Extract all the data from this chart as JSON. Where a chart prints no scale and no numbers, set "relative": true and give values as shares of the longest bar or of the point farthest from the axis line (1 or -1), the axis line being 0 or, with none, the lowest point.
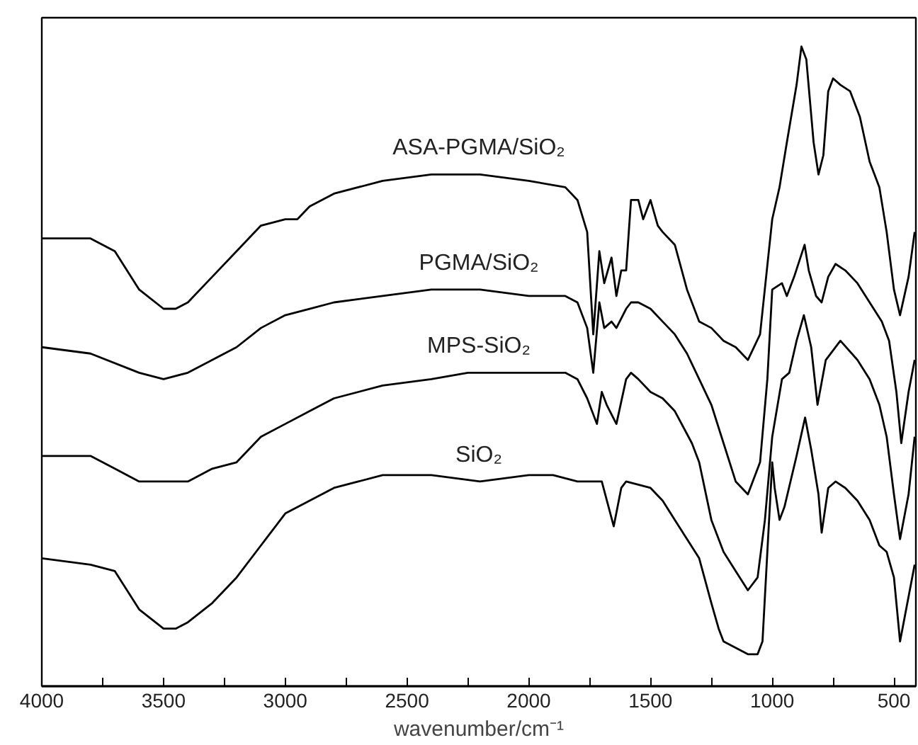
{
  "chart_data": {
    "type": "line",
    "relative": true,
    "xlabel": "wavenumber/cm⁻¹",
    "xlim": [
      4000,
      410
    ],
    "xticks": [
      4000,
      {
        "value": 3750,
        "label": null
      },
      3500,
      {
        "value": 3250,
        "label": null
      },
      3000,
      {
        "value": 2750,
        "label": null
      },
      2500,
      {
        "value": 2250,
        "label": null
      },
      2000,
      {
        "value": 1750,
        "label": null
      },
      1500,
      {
        "value": 1250,
        "label": null
      },
      1000,
      {
        "value": 750,
        "label": null
      },
      500
    ],
    "tick_labels": "x",
    "series": [
      {
        "name": "ASA-PGMA/SiO₂",
        "color": "#000000",
        "x": [
          4000,
          3800,
          3700,
          3600,
          3500,
          3450,
          3400,
          3300,
          3200,
          3100,
          3000,
          2950,
          2900,
          2800,
          2600,
          2400,
          2200,
          2000,
          1850,
          1800,
          1760,
          1735,
          1710,
          1690,
          1660,
          1640,
          1620,
          1600,
          1580,
          1550,
          1530,
          1500,
          1470,
          1450,
          1400,
          1350,
          1300,
          1250,
          1200,
          1150,
          1100,
          1050,
          1000,
          970,
          940,
          900,
          880,
          860,
          830,
          810,
          790,
          770,
          750,
          720,
          680,
          640,
          600,
          560,
          530,
          500,
          475,
          440,
          415
        ],
        "values": [
          0.7,
          0.7,
          0.68,
          0.62,
          0.59,
          0.59,
          0.6,
          0.64,
          0.68,
          0.72,
          0.73,
          0.73,
          0.75,
          0.77,
          0.79,
          0.8,
          0.8,
          0.79,
          0.78,
          0.76,
          0.71,
          0.55,
          0.68,
          0.63,
          0.67,
          0.61,
          0.65,
          0.65,
          0.76,
          0.76,
          0.73,
          0.76,
          0.72,
          0.71,
          0.69,
          0.62,
          0.57,
          0.56,
          0.54,
          0.53,
          0.51,
          0.55,
          0.73,
          0.78,
          0.85,
          0.94,
          1.0,
          0.98,
          0.85,
          0.8,
          0.83,
          0.93,
          0.95,
          0.94,
          0.93,
          0.89,
          0.82,
          0.78,
          0.71,
          0.62,
          0.58,
          0.64,
          0.71
        ]
      },
      {
        "name": "PGMA/SiO₂",
        "color": "#000000",
        "x": [
          4000,
          3800,
          3600,
          3500,
          3400,
          3300,
          3200,
          3100,
          3000,
          2900,
          2800,
          2600,
          2400,
          2200,
          2000,
          1850,
          1800,
          1760,
          1735,
          1710,
          1690,
          1660,
          1640,
          1600,
          1580,
          1550,
          1500,
          1450,
          1400,
          1350,
          1300,
          1250,
          1200,
          1150,
          1100,
          1050,
          1020,
          1000,
          960,
          940,
          910,
          867,
          850,
          820,
          797,
          770,
          740,
          700,
          650,
          600,
          550,
          520,
          490,
          470,
          440,
          415
        ],
        "values": [
          0.53,
          0.52,
          0.49,
          0.48,
          0.49,
          0.51,
          0.53,
          0.56,
          0.58,
          0.59,
          0.6,
          0.61,
          0.62,
          0.62,
          0.61,
          0.61,
          0.6,
          0.56,
          0.49,
          0.6,
          0.56,
          0.57,
          0.56,
          0.59,
          0.6,
          0.6,
          0.59,
          0.57,
          0.55,
          0.52,
          0.48,
          0.44,
          0.38,
          0.32,
          0.3,
          0.35,
          0.48,
          0.62,
          0.63,
          0.61,
          0.64,
          0.69,
          0.65,
          0.61,
          0.6,
          0.64,
          0.66,
          0.65,
          0.63,
          0.6,
          0.57,
          0.54,
          0.46,
          0.38,
          0.46,
          0.51
        ]
      },
      {
        "name": "MPS-SiO₂",
        "color": "#000000",
        "x": [
          4000,
          3800,
          3700,
          3600,
          3500,
          3400,
          3300,
          3200,
          3100,
          3000,
          2900,
          2800,
          2600,
          2400,
          2250,
          2000,
          1850,
          1800,
          1760,
          1720,
          1700,
          1680,
          1640,
          1600,
          1580,
          1550,
          1500,
          1450,
          1400,
          1330,
          1300,
          1250,
          1200,
          1150,
          1100,
          1060,
          1030,
          1000,
          960,
          930,
          900,
          870,
          840,
          814,
          780,
          720,
          650,
          600,
          560,
          530,
          500,
          475,
          440,
          415
        ],
        "values": [
          0.36,
          0.36,
          0.34,
          0.32,
          0.32,
          0.32,
          0.34,
          0.35,
          0.39,
          0.41,
          0.43,
          0.45,
          0.47,
          0.48,
          0.49,
          0.49,
          0.49,
          0.48,
          0.45,
          0.41,
          0.46,
          0.44,
          0.41,
          0.48,
          0.49,
          0.48,
          0.46,
          0.45,
          0.43,
          0.38,
          0.35,
          0.26,
          0.21,
          0.18,
          0.15,
          0.17,
          0.26,
          0.39,
          0.48,
          0.49,
          0.54,
          0.58,
          0.53,
          0.44,
          0.51,
          0.54,
          0.51,
          0.48,
          0.44,
          0.39,
          0.3,
          0.23,
          0.3,
          0.39
        ]
      },
      {
        "name": "SiO₂",
        "color": "#000000",
        "x": [
          4000,
          3800,
          3700,
          3600,
          3500,
          3450,
          3400,
          3300,
          3200,
          3100,
          3000,
          2900,
          2800,
          2700,
          2600,
          2400,
          2200,
          2000,
          1900,
          1800,
          1700,
          1651,
          1620,
          1600,
          1500,
          1450,
          1400,
          1350,
          1300,
          1250,
          1220,
          1200,
          1150,
          1100,
          1060,
          1040,
          1020,
          1000,
          990,
          970,
          950,
          900,
          865,
          840,
          810,
          797,
          770,
          740,
          700,
          650,
          600,
          560,
          530,
          500,
          475,
          450,
          415
        ],
        "values": [
          0.2,
          0.19,
          0.18,
          0.12,
          0.09,
          0.09,
          0.1,
          0.13,
          0.17,
          0.22,
          0.27,
          0.29,
          0.31,
          0.32,
          0.33,
          0.33,
          0.32,
          0.33,
          0.33,
          0.32,
          0.32,
          0.25,
          0.31,
          0.32,
          0.31,
          0.29,
          0.26,
          0.23,
          0.2,
          0.13,
          0.09,
          0.07,
          0.06,
          0.05,
          0.05,
          0.07,
          0.21,
          0.35,
          0.31,
          0.26,
          0.28,
          0.36,
          0.42,
          0.37,
          0.3,
          0.24,
          0.31,
          0.32,
          0.31,
          0.29,
          0.26,
          0.22,
          0.21,
          0.17,
          0.07,
          0.12,
          0.19
        ]
      }
    ]
  }
}
